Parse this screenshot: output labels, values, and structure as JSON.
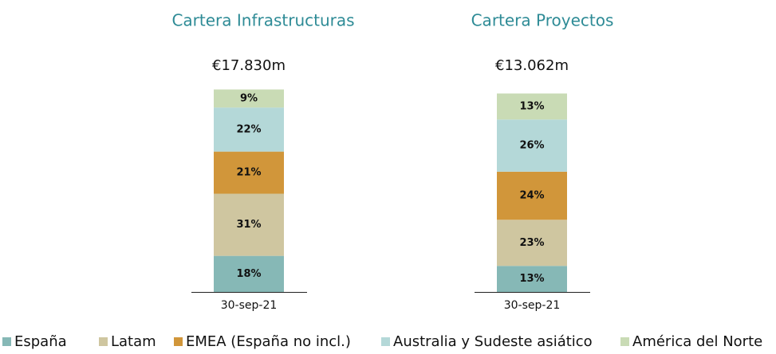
{
  "chart_data": [
    {
      "type": "bar",
      "stacked": true,
      "title": "Cartera Infrastructuras",
      "annotation": "€17.830m",
      "categories": [
        "30-sep-21"
      ],
      "ylim": [
        0,
        100
      ],
      "series": [
        {
          "values": [
            18
          ],
          "value_labels": [
            "18%"
          ]
        },
        {
          "values": [
            31
          ],
          "value_labels": [
            "31%"
          ]
        },
        {
          "values": [
            21
          ],
          "value_labels": [
            "21%"
          ]
        },
        {
          "values": [
            22
          ],
          "value_labels": [
            "22%"
          ]
        },
        {
          "values": [
            9
          ],
          "value_labels": [
            "9%"
          ]
        }
      ]
    },
    {
      "type": "bar",
      "stacked": true,
      "title": "Cartera Proyectos",
      "annotation": "€13.062m",
      "categories": [
        "30-sep-21"
      ],
      "ylim": [
        0,
        100
      ],
      "series": [
        {
          "values": [
            13
          ],
          "value_labels": [
            "13%"
          ]
        },
        {
          "values": [
            23
          ],
          "value_labels": [
            "23%"
          ]
        },
        {
          "values": [
            24
          ],
          "value_labels": [
            "24%"
          ]
        },
        {
          "values": [
            26
          ],
          "value_labels": [
            "26%"
          ]
        },
        {
          "values": [
            13
          ],
          "value_labels": [
            "13%"
          ]
        }
      ]
    }
  ],
  "legend": {
    "items": [
      {
        "name": "España",
        "color": "#86b8b6"
      },
      {
        "name": "Latam",
        "color": "#cfc6a0"
      },
      {
        "name": "EMEA (España no incl.)",
        "color": "#d1963a"
      },
      {
        "name": "Australia y Sudeste asiático",
        "color": "#b4d8d8"
      },
      {
        "name": "América del Norte",
        "color": "#c9dbb5"
      }
    ]
  }
}
